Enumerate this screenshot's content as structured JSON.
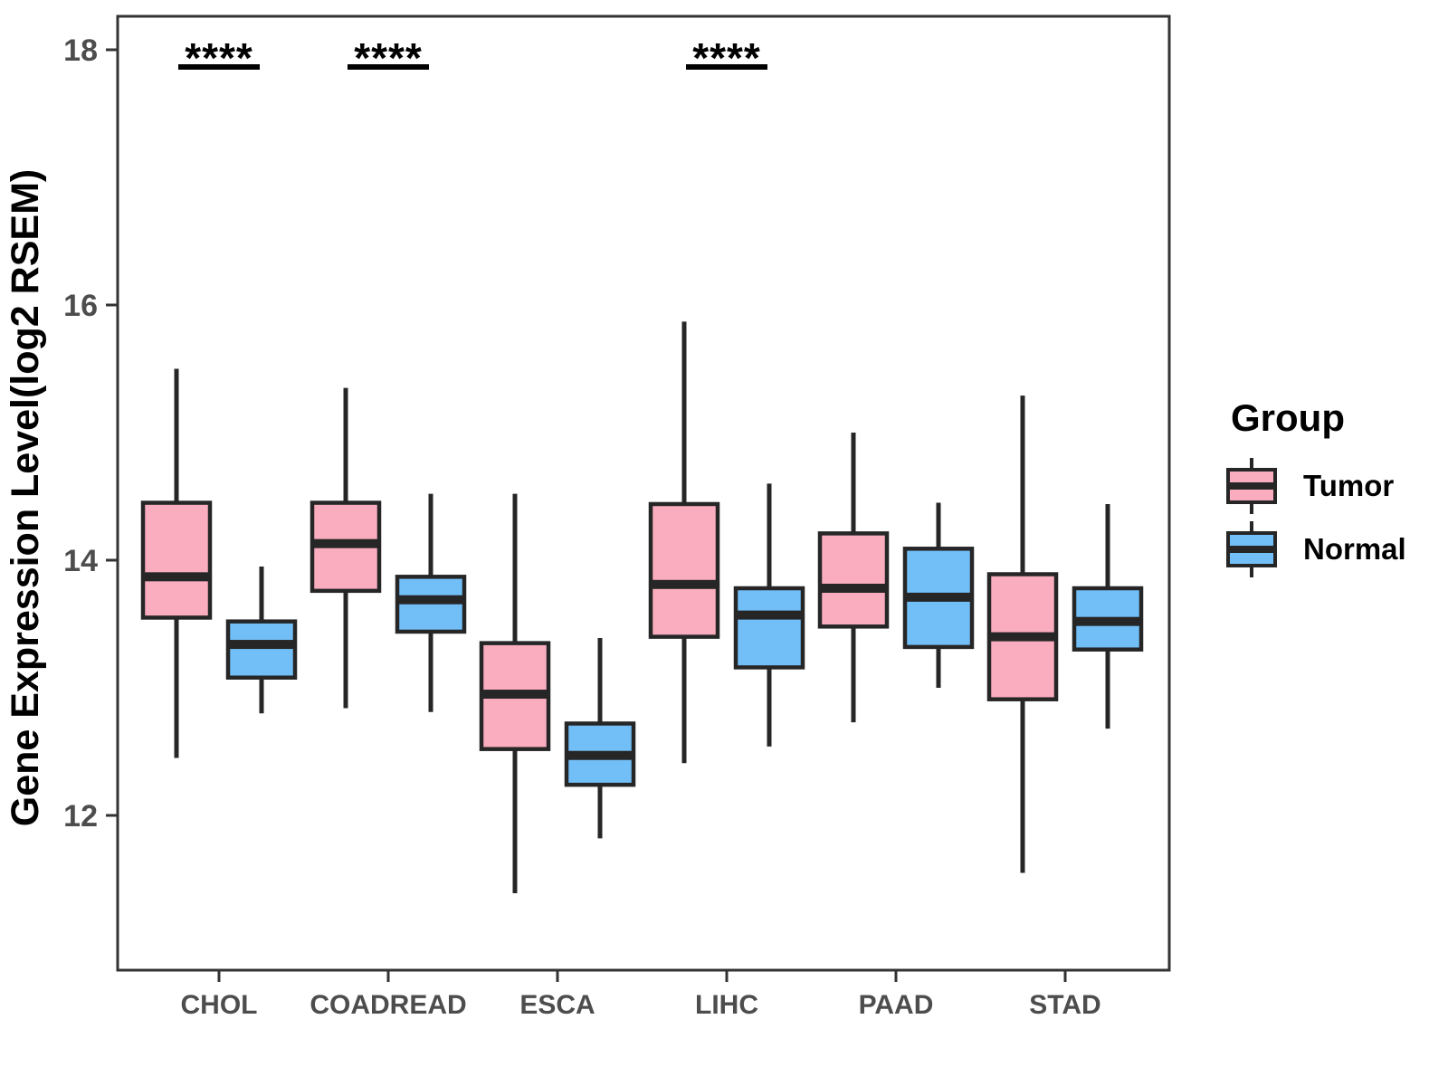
{
  "chart_data": {
    "type": "boxplot",
    "title": "",
    "xlabel": "",
    "ylabel": "Gene Expression Level(log2 RSEM)",
    "categories": [
      "CHOL",
      "COADREAD",
      "ESCA",
      "LIHC",
      "PAAD",
      "STAD"
    ],
    "yticks": [
      18,
      16,
      14,
      12
    ],
    "ylim": [
      10.8,
      18.3
    ],
    "grid": false,
    "legend_position": "right",
    "colors": {
      "tumor": "#FBADC0",
      "normal": "#72BFF8",
      "stroke": "#262626"
    },
    "legend": {
      "title": "Group",
      "entries": [
        {
          "label": "Tumor",
          "color": "#FBADC0"
        },
        {
          "label": "Normal",
          "color": "#72BFF8"
        }
      ]
    },
    "series": [
      {
        "name": "Tumor",
        "color": "#FBADC0",
        "boxes": [
          {
            "category": "CHOL",
            "whisker_low": 12.45,
            "q1": 13.55,
            "median": 13.87,
            "q3": 14.45,
            "whisker_high": 15.5
          },
          {
            "category": "COADREAD",
            "whisker_low": 12.84,
            "q1": 13.76,
            "median": 14.13,
            "q3": 14.45,
            "whisker_high": 15.35
          },
          {
            "category": "ESCA",
            "whisker_low": 11.39,
            "q1": 12.52,
            "median": 12.95,
            "q3": 13.35,
            "whisker_high": 14.52
          },
          {
            "category": "LIHC",
            "whisker_low": 12.41,
            "q1": 13.4,
            "median": 13.81,
            "q3": 14.44,
            "whisker_high": 15.87
          },
          {
            "category": "PAAD",
            "whisker_low": 12.73,
            "q1": 13.48,
            "median": 13.78,
            "q3": 14.21,
            "whisker_high": 15.0
          },
          {
            "category": "STAD",
            "whisker_low": 11.55,
            "q1": 12.91,
            "median": 13.4,
            "q3": 13.89,
            "whisker_high": 15.29
          }
        ]
      },
      {
        "name": "Normal",
        "color": "#72BFF8",
        "boxes": [
          {
            "category": "CHOL",
            "whisker_low": 12.8,
            "q1": 13.08,
            "median": 13.34,
            "q3": 13.52,
            "whisker_high": 13.95
          },
          {
            "category": "COADREAD",
            "whisker_low": 12.81,
            "q1": 13.44,
            "median": 13.69,
            "q3": 13.87,
            "whisker_high": 14.52
          },
          {
            "category": "ESCA",
            "whisker_low": 11.82,
            "q1": 12.24,
            "median": 12.47,
            "q3": 12.72,
            "whisker_high": 13.39
          },
          {
            "category": "LIHC",
            "whisker_low": 12.54,
            "q1": 13.16,
            "median": 13.57,
            "q3": 13.78,
            "whisker_high": 14.6
          },
          {
            "category": "PAAD",
            "whisker_low": 13.0,
            "q1": 13.32,
            "median": 13.71,
            "q3": 14.09,
            "whisker_high": 14.45
          },
          {
            "category": "STAD",
            "whisker_low": 12.68,
            "q1": 13.3,
            "median": 13.52,
            "q3": 13.78,
            "whisker_high": 14.44
          }
        ]
      }
    ],
    "significance": [
      {
        "category": "CHOL",
        "label": "****"
      },
      {
        "category": "COADREAD",
        "label": "****"
      },
      {
        "category": "LIHC",
        "label": "****"
      }
    ]
  }
}
